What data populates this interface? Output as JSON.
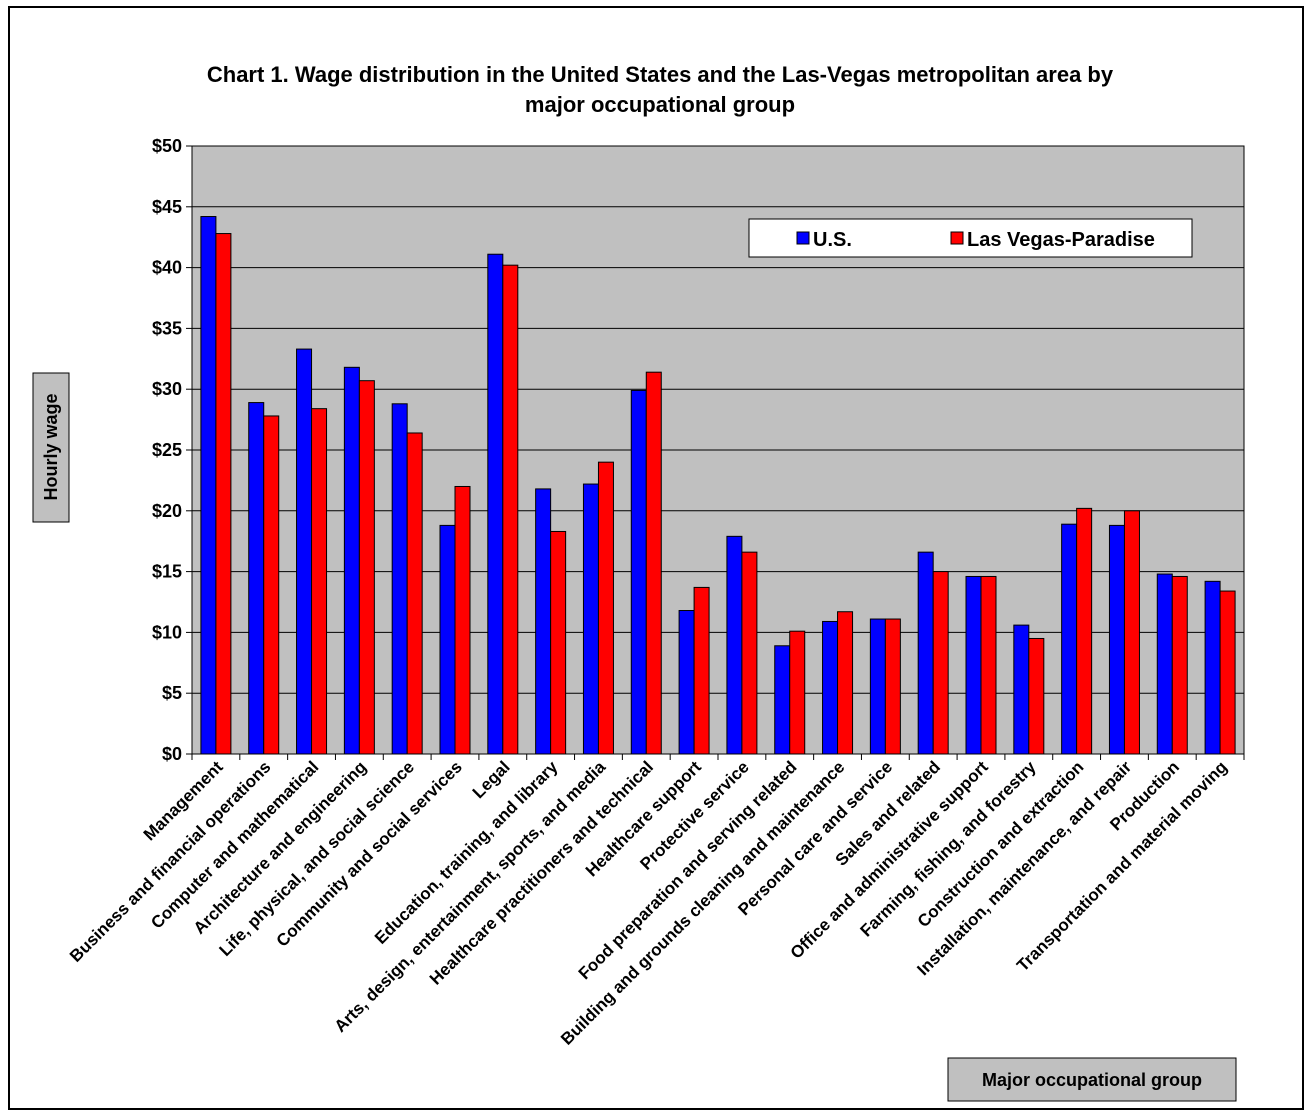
{
  "chart_data": {
    "type": "bar",
    "title": "Chart 1.  Wage distribution in the United States and the Las-Vegas metropolitan area by major occupational group",
    "title_lines": [
      "Chart 1.  Wage distribution in the United States and the Las-Vegas metropolitan area by",
      "major occupational group"
    ],
    "xlabel": "Major occupational group",
    "ylabel": "Hourly wage",
    "ylim": [
      0,
      50
    ],
    "y_ticks": [
      "$0",
      "$5",
      "$10",
      "$15",
      "$20",
      "$25",
      "$30",
      "$35",
      "$40",
      "$45",
      "$50"
    ],
    "grid": true,
    "legend_position": "top-right",
    "categories": [
      "Management",
      "Business and financial operations",
      "Computer and mathematical",
      "Architecture and engineering",
      "Life, physical, and social science",
      "Community and social services",
      "Legal",
      "Education, training, and library",
      "Arts, design, entertainment, sports, and media",
      "Healthcare practitioners and technical",
      "Healthcare support",
      "Protective service",
      "Food preparation and serving related",
      "Building and grounds cleaning and maintenance",
      "Personal care and service",
      "Sales and related",
      "Office and administrative support",
      "Farming, fishing, and forestry",
      "Construction and extraction",
      "Installation, maintenance, and repair",
      "Production",
      "Transportation and material moving"
    ],
    "series": [
      {
        "name": "U.S.",
        "color": "#0000ff",
        "values": [
          44.2,
          28.9,
          33.3,
          31.8,
          28.8,
          18.8,
          41.1,
          21.8,
          22.2,
          29.9,
          11.8,
          17.9,
          8.9,
          10.9,
          11.1,
          16.6,
          14.6,
          10.6,
          18.9,
          18.8,
          14.8,
          14.2
        ]
      },
      {
        "name": "Las Vegas-Paradise",
        "color": "#ff0000",
        "values": [
          42.8,
          27.8,
          28.4,
          30.7,
          26.4,
          22.0,
          40.2,
          18.3,
          24.0,
          31.4,
          13.7,
          16.6,
          10.1,
          11.7,
          11.1,
          15.0,
          14.6,
          9.5,
          20.2,
          20.0,
          14.6,
          13.4
        ]
      }
    ],
    "colors": {
      "plot_background": "#c0c0c0",
      "axis_title_box": "#c0c0c0",
      "gridline": "#000000"
    }
  }
}
